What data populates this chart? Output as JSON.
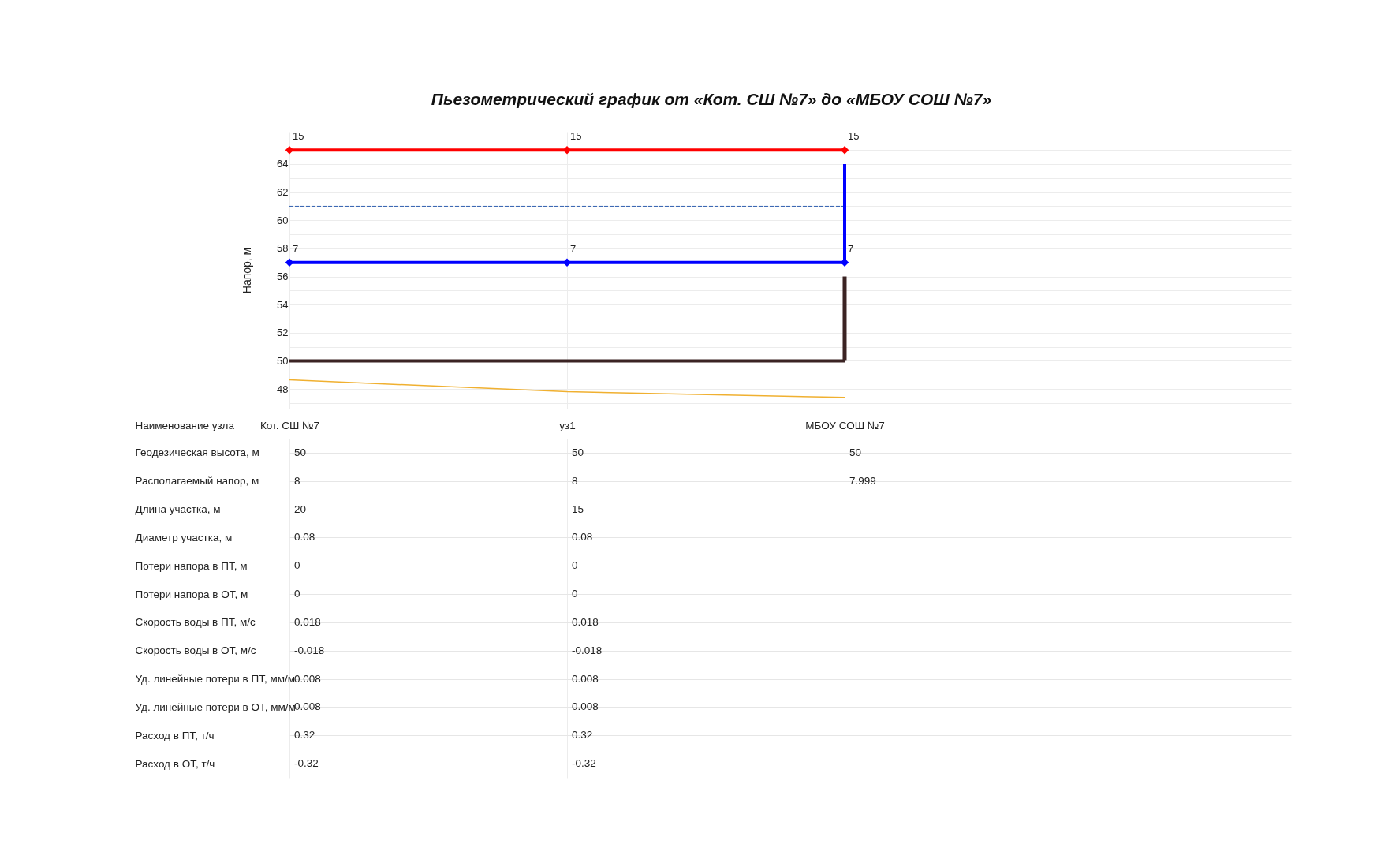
{
  "chart_data": [
    {
      "type": "line",
      "title": "Пьезометрический график от «Кот. СШ №7» до «МБОУ СОШ №7»",
      "ylabel": "Напор, м",
      "categories": [
        "Кот. СШ №7",
        "уз1",
        "МБОУ СОШ №7"
      ],
      "ylim": [
        46.6,
        66.3
      ],
      "yticks": [
        {
          "value": 47,
          "label": null
        },
        48,
        {
          "value": 49,
          "label": null
        },
        50,
        {
          "value": 51,
          "label": null
        },
        52,
        {
          "value": 53,
          "label": null
        },
        54,
        {
          "value": 55,
          "label": null
        },
        56,
        {
          "value": 57,
          "label": null
        },
        58,
        {
          "value": 59,
          "label": null
        },
        60,
        {
          "value": 61,
          "label": null
        },
        62,
        {
          "value": 63,
          "label": null
        },
        64,
        {
          "value": 65,
          "label": null
        },
        {
          "value": 66,
          "label": null
        }
      ],
      "grid": true,
      "xlabel": "Наименование узла",
      "annotations": [
        {
          "text": "15",
          "x": "Кот. СШ №7",
          "y": 65
        },
        {
          "text": "15",
          "x": "уз1",
          "y": 65
        },
        {
          "text": "15",
          "x": "МБОУ СОШ №7",
          "y": 65
        },
        {
          "text": "7",
          "x": "Кот. СШ №7",
          "y": 57
        },
        {
          "text": "7",
          "x": "уз1",
          "y": 57
        },
        {
          "text": "7",
          "x": "МБОУ СОШ №7",
          "y": 57
        }
      ],
      "series": [
        {
          "color": "#ff0000",
          "values": [
            65,
            65,
            65
          ],
          "marker": "diamond"
        },
        {
          "color": "#0000ff",
          "values": [
            57,
            57,
            57
          ],
          "marker": "diamond"
        },
        {
          "color": "#2f5fb0",
          "values": [
            61,
            61,
            61
          ],
          "line_style": "dashed"
        },
        {
          "color": "#3b2323",
          "values": [
            50,
            50,
            50
          ]
        },
        {
          "color": "#f0b030",
          "values": [
            48.65,
            47.8,
            47.4
          ]
        },
        {
          "color": "#0000ff",
          "x": [
            "МБОУ СОШ №7",
            "МБОУ СОШ №7"
          ],
          "values": [
            57,
            64
          ]
        },
        {
          "color": "#3b2323",
          "x": [
            "МБОУ СОШ №7",
            "МБОУ СОШ №7"
          ],
          "values": [
            50,
            56
          ]
        }
      ]
    },
    {
      "type": "other",
      "y_categories": [
        "Геодезическая высота, м",
        "Располагаемый напор, м",
        "Длина участка, м",
        "Диаметр участка, м",
        "Потери напора в ПТ, м",
        "Потери напора в ОТ, м",
        "Скорость воды в ПТ, м/с",
        "Скорость воды в ОТ, м/с",
        "Уд. линейные потери в ПТ, мм/м",
        "Уд. линейные потери в ОТ, мм/м",
        "Расход в ПТ, т/ч",
        "Расход в ОТ, т/ч"
      ],
      "cell_labels": [
        [
          "50",
          "50",
          "50"
        ],
        [
          "8",
          "8",
          "7.999"
        ],
        [
          "20",
          "15",
          null
        ],
        [
          "0.08",
          "0.08",
          null
        ],
        [
          "0",
          "0",
          null
        ],
        [
          "0",
          "0",
          null
        ],
        [
          "0.018",
          "0.018",
          null
        ],
        [
          "-0.018",
          "-0.018",
          null
        ],
        [
          "0.008",
          "0.008",
          null
        ],
        [
          "0.008",
          "0.008",
          null
        ],
        [
          "0.32",
          "0.32",
          null
        ],
        [
          "-0.32",
          "-0.32",
          null
        ]
      ]
    }
  ]
}
